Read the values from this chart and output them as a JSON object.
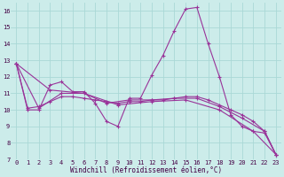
{
  "xlabel": "Windchill (Refroidissement éolien,°C)",
  "background_color": "#ccecea",
  "grid_color": "#aad8d6",
  "line_color": "#993399",
  "xlim": [
    -0.5,
    23.5
  ],
  "ylim": [
    7,
    16.5
  ],
  "yticks": [
    7,
    8,
    9,
    10,
    11,
    12,
    13,
    14,
    15,
    16
  ],
  "xticks": [
    0,
    1,
    2,
    3,
    4,
    5,
    6,
    7,
    8,
    9,
    10,
    11,
    12,
    13,
    14,
    15,
    16,
    17,
    18,
    19,
    20,
    21,
    22,
    23
  ],
  "series1": {
    "x": [
      0,
      1,
      2,
      3,
      4,
      5,
      6,
      7,
      8,
      9,
      10,
      11,
      12,
      13,
      14,
      15,
      16,
      17,
      18,
      19,
      20,
      21,
      22,
      23
    ],
    "y": [
      12.8,
      10.0,
      10.0,
      11.5,
      11.7,
      11.1,
      11.1,
      10.4,
      9.3,
      9.0,
      10.7,
      10.7,
      12.1,
      13.3,
      14.8,
      16.1,
      16.2,
      14.0,
      12.0,
      9.7,
      9.0,
      8.7,
      8.6,
      7.3
    ]
  },
  "series2": {
    "x": [
      0,
      1,
      2,
      3,
      4,
      5,
      6,
      7,
      8,
      9,
      10,
      11,
      12,
      13,
      14,
      15,
      16,
      17,
      18,
      19,
      20,
      21,
      22,
      23
    ],
    "y": [
      12.8,
      10.1,
      10.2,
      10.5,
      10.8,
      10.8,
      10.7,
      10.6,
      10.5,
      10.4,
      10.5,
      10.5,
      10.6,
      10.6,
      10.7,
      10.8,
      10.8,
      10.6,
      10.3,
      10.0,
      9.7,
      9.3,
      8.7,
      7.3
    ]
  },
  "series3": {
    "x": [
      0,
      2,
      4,
      6,
      8,
      10,
      12,
      14,
      16,
      18,
      20,
      22,
      23
    ],
    "y": [
      12.8,
      10.1,
      11.0,
      11.0,
      10.4,
      10.6,
      10.6,
      10.7,
      10.7,
      10.2,
      9.5,
      8.7,
      7.3
    ]
  },
  "series4": {
    "x": [
      0,
      3,
      6,
      9,
      12,
      15,
      18,
      21,
      23
    ],
    "y": [
      12.8,
      11.2,
      11.0,
      10.3,
      10.5,
      10.6,
      10.0,
      8.7,
      7.3
    ]
  }
}
